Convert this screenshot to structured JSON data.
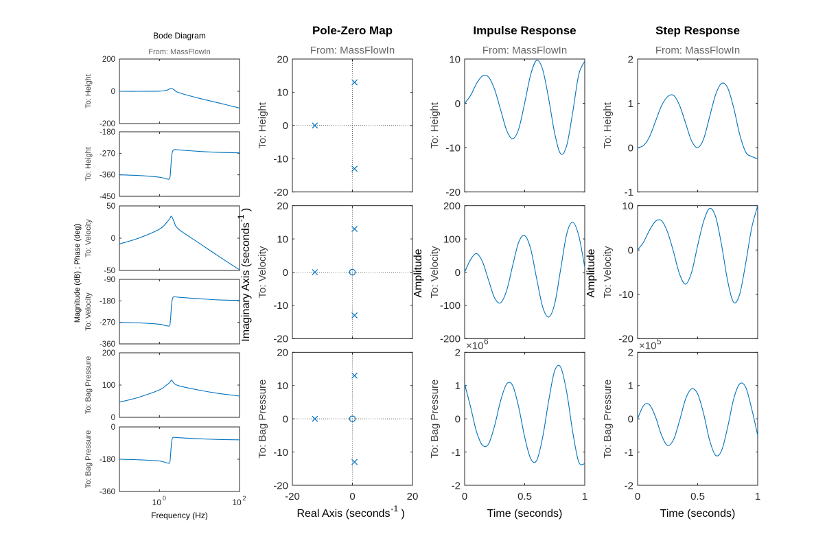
{
  "chart_data": [
    {
      "type": "line",
      "title": "Bode Diagram",
      "subtitle": "From: MassFlowIn",
      "xlabel": "Frequency  (Hz)",
      "ylabel": "Magnitude (dB) ; Phase (deg)",
      "xscale": "log",
      "xlim": [
        0.1,
        100
      ],
      "x_ticks": [
        "10^0",
        "10^2"
      ],
      "grid": false,
      "rows": [
        {
          "output": "To: Height",
          "quantity": "magnitude",
          "ylim": [
            -200,
            200
          ],
          "y_ticks": [
            "200",
            "0",
            "-200"
          ],
          "x": [
            0.1,
            0.3,
            1,
            1.5,
            1.8,
            2,
            2.3,
            3,
            10,
            30,
            100
          ],
          "y": [
            0,
            0,
            1,
            6,
            15,
            18,
            10,
            -8,
            -44,
            -72,
            -104
          ]
        },
        {
          "output": "To: Height",
          "quantity": "phase",
          "ylim": [
            -450,
            -180
          ],
          "y_ticks": [
            "-180",
            "-270",
            "-360",
            "-450"
          ],
          "x": [
            0.1,
            0.3,
            1,
            1.5,
            1.8,
            1.9,
            2,
            2.1,
            2.3,
            3,
            10,
            30,
            100
          ],
          "y": [
            -360,
            -363,
            -370,
            -377,
            -375,
            -340,
            -290,
            -265,
            -255,
            -256,
            -262,
            -266,
            -268
          ]
        },
        {
          "output": "To: Velocity",
          "quantity": "magnitude",
          "ylim": [
            -50,
            50
          ],
          "y_ticks": [
            "50",
            "0",
            "-50"
          ],
          "x": [
            0.1,
            0.3,
            1,
            1.5,
            1.8,
            2,
            2.3,
            3,
            10,
            30,
            100
          ],
          "y": [
            -9,
            0,
            14,
            24,
            30,
            34,
            26,
            14,
            -8,
            -28,
            -49
          ]
        },
        {
          "output": "To: Velocity",
          "quantity": "phase",
          "ylim": [
            -360,
            -90
          ],
          "y_ticks": [
            "-90",
            "-180",
            "-270",
            "-360"
          ],
          "x": [
            0.1,
            0.3,
            1,
            1.5,
            1.8,
            1.9,
            2,
            2.1,
            2.3,
            3,
            10,
            30,
            100
          ],
          "y": [
            -270,
            -272,
            -278,
            -284,
            -283,
            -250,
            -200,
            -173,
            -163,
            -165,
            -171,
            -176,
            -178
          ]
        },
        {
          "output": "To: Bag Pressure",
          "quantity": "magnitude",
          "ylim": [
            0,
            200
          ],
          "y_ticks": [
            "200",
            "100",
            "0"
          ],
          "x": [
            0.1,
            0.3,
            1,
            1.5,
            1.8,
            2,
            2.3,
            3,
            10,
            30,
            100
          ],
          "y": [
            47,
            62,
            85,
            100,
            108,
            115,
            106,
            98,
            84,
            74,
            66
          ]
        },
        {
          "output": "To: Bag Pressure",
          "quantity": "phase",
          "ylim": [
            -360,
            0
          ],
          "y_ticks": [
            "0",
            "-180",
            "-360"
          ],
          "x": [
            0.1,
            0.3,
            1,
            1.5,
            1.8,
            1.9,
            2,
            2.1,
            2.3,
            3,
            10,
            30,
            100
          ],
          "y": [
            -180,
            -183,
            -190,
            -200,
            -199,
            -150,
            -90,
            -63,
            -58,
            -60,
            -66,
            -70,
            -72
          ]
        }
      ]
    },
    {
      "type": "scatter",
      "title": "Pole-Zero Map",
      "subtitle": "From: MassFlowIn",
      "xlabel": "Real Axis (seconds",
      "ylabel": "Imaginary Axis (seconds",
      "label_exponent": "-1",
      "label_suffix": ")",
      "xlim": [
        -20,
        20
      ],
      "x_ticks": [
        "-20",
        "0",
        "20"
      ],
      "grid": false,
      "rows": [
        {
          "output": "To: Height",
          "ylim": [
            -20,
            20
          ],
          "y_ticks": [
            "20",
            "10",
            "0",
            "-10",
            "-20"
          ],
          "poles": [
            [
              -12.5,
              0
            ],
            [
              0.7,
              13
            ],
            [
              0.7,
              -13
            ]
          ],
          "zeros": []
        },
        {
          "output": "To: Velocity",
          "ylim": [
            -20,
            20
          ],
          "y_ticks": [
            "20",
            "10",
            "0",
            "-10",
            "-20"
          ],
          "poles": [
            [
              -12.5,
              0
            ],
            [
              0.7,
              13
            ],
            [
              0.7,
              -13
            ]
          ],
          "zeros": [
            [
              0,
              0
            ]
          ]
        },
        {
          "output": "To: Bag Pressure",
          "ylim": [
            -20,
            20
          ],
          "y_ticks": [
            "20",
            "10",
            "0",
            "-10",
            "-20"
          ],
          "poles": [
            [
              -12.5,
              0
            ],
            [
              0.7,
              13
            ],
            [
              0.7,
              -13
            ]
          ],
          "zeros": [
            [
              0,
              0
            ]
          ]
        }
      ]
    },
    {
      "type": "line",
      "title": "Impulse Response",
      "subtitle": "From: MassFlowIn",
      "xlabel": "Time (seconds)",
      "ylabel": "Amplitude",
      "xlim": [
        0,
        1
      ],
      "x_ticks": [
        "0",
        "0.5",
        "1"
      ],
      "grid": false,
      "rows": [
        {
          "output": "To: Height",
          "ylim": [
            -20,
            10
          ],
          "y_ticks": [
            "10",
            "0",
            "-10",
            "-20"
          ],
          "x": [
            0,
            0.05,
            0.1,
            0.15,
            0.2,
            0.25,
            0.3,
            0.35,
            0.4,
            0.45,
            0.5,
            0.55,
            0.6,
            0.65,
            0.7,
            0.75,
            0.8,
            0.85,
            0.9,
            0.95,
            1
          ],
          "y": [
            0,
            1.8,
            4.5,
            6.2,
            5.9,
            3.1,
            -1.5,
            -6.1,
            -8.0,
            -5.8,
            0.1,
            6.5,
            9.7,
            7.6,
            1.0,
            -6.8,
            -11.4,
            -9.5,
            -2.0,
            6.5,
            9.5
          ]
        },
        {
          "output": "To: Velocity",
          "ylim": [
            -200,
            200
          ],
          "y_ticks": [
            "200",
            "100",
            "0",
            "-100",
            "-200"
          ],
          "x": [
            0,
            0.05,
            0.1,
            0.15,
            0.2,
            0.25,
            0.3,
            0.35,
            0.4,
            0.45,
            0.5,
            0.55,
            0.6,
            0.65,
            0.7,
            0.75,
            0.8,
            0.85,
            0.9,
            0.95,
            1
          ],
          "y": [
            0,
            38,
            56,
            30,
            -25,
            -78,
            -92,
            -55,
            20,
            90,
            110,
            70,
            -20,
            -105,
            -135,
            -95,
            10,
            115,
            150,
            110,
            15
          ]
        },
        {
          "output": "To: Bag Pressure",
          "ylim": [
            -2,
            2
          ],
          "y_ticks": [
            "2",
            "1",
            "0",
            "-1",
            "-2"
          ],
          "x": [
            0,
            0.05,
            0.1,
            0.15,
            0.2,
            0.25,
            0.3,
            0.35,
            0.4,
            0.45,
            0.5,
            0.55,
            0.6,
            0.65,
            0.7,
            0.75,
            0.8,
            0.85,
            0.9,
            0.95,
            1
          ],
          "y": [
            1.05,
            0.35,
            -0.4,
            -0.8,
            -0.75,
            -0.2,
            0.55,
            1.05,
            1.0,
            0.35,
            -0.55,
            -1.2,
            -1.25,
            -0.55,
            0.55,
            1.45,
            1.55,
            0.8,
            -0.4,
            -1.3,
            -1.35
          ],
          "multiplier_base": "×10",
          "multiplier_exp": "6"
        }
      ]
    },
    {
      "type": "line",
      "title": "Step Response",
      "subtitle": "From: MassFlowIn",
      "xlabel": "Time (seconds)",
      "ylabel": "Amplitude",
      "xlim": [
        0,
        1
      ],
      "x_ticks": [
        "0",
        "0.5",
        "1"
      ],
      "grid": false,
      "rows": [
        {
          "output": "To: Height",
          "ylim": [
            -1,
            2
          ],
          "y_ticks": [
            "2",
            "1",
            "0",
            "-1"
          ],
          "x": [
            0,
            0.05,
            0.1,
            0.15,
            0.2,
            0.25,
            0.3,
            0.35,
            0.4,
            0.45,
            0.5,
            0.55,
            0.6,
            0.65,
            0.7,
            0.75,
            0.8,
            0.85,
            0.9,
            0.95,
            1
          ],
          "y": [
            0,
            0.05,
            0.25,
            0.6,
            0.95,
            1.15,
            1.18,
            0.95,
            0.55,
            0.15,
            0,
            0.2,
            0.7,
            1.2,
            1.45,
            1.35,
            0.9,
            0.3,
            -0.1,
            -0.2,
            -0.25
          ]
        },
        {
          "output": "To: Velocity",
          "ylim": [
            -20,
            10
          ],
          "y_ticks": [
            "10",
            "0",
            "-10",
            "-20"
          ],
          "x": [
            0,
            0.05,
            0.1,
            0.15,
            0.2,
            0.25,
            0.3,
            0.35,
            0.4,
            0.45,
            0.5,
            0.55,
            0.6,
            0.65,
            0.7,
            0.75,
            0.8,
            0.85,
            0.9,
            0.95,
            1
          ],
          "y": [
            0,
            1.8,
            4.5,
            6.5,
            6.6,
            4.0,
            -0.5,
            -5.5,
            -7.7,
            -5.0,
            1.0,
            6.5,
            9.4,
            7.5,
            1.0,
            -7.0,
            -11.8,
            -10.0,
            -3.0,
            5.0,
            10.0
          ]
        },
        {
          "output": "To: Bag Pressure",
          "ylim": [
            -2,
            2
          ],
          "y_ticks": [
            "2",
            "1",
            "0",
            "-1",
            "-2"
          ],
          "x": [
            0,
            0.05,
            0.1,
            0.15,
            0.2,
            0.25,
            0.3,
            0.35,
            0.4,
            0.45,
            0.5,
            0.55,
            0.6,
            0.65,
            0.7,
            0.75,
            0.8,
            0.85,
            0.9,
            0.95,
            1
          ],
          "y": [
            0,
            0.4,
            0.42,
            0.05,
            -0.5,
            -0.8,
            -0.62,
            -0.05,
            0.6,
            0.9,
            0.75,
            0.15,
            -0.65,
            -1.1,
            -0.95,
            -0.25,
            0.6,
            1.05,
            0.95,
            0.3,
            -0.5
          ],
          "multiplier_base": "×10",
          "multiplier_exp": "5"
        }
      ]
    }
  ]
}
